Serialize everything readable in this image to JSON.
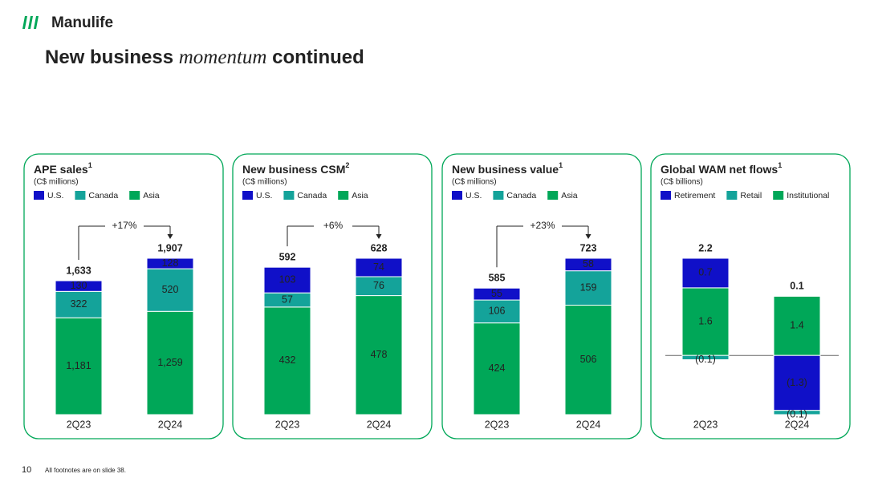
{
  "header": {
    "brand": "Manulife",
    "title_parts": [
      "New business",
      "momentum",
      "continued"
    ]
  },
  "footer": {
    "page": "10",
    "note": "All footnotes are on slide 38."
  },
  "chart_data": [
    {
      "type": "stacked_bar",
      "title": "APE sales",
      "title_note": "1",
      "subtitle": "(C$ millions)",
      "categories": [
        "2Q23",
        "2Q24"
      ],
      "series": [
        {
          "name": "U.S.",
          "color": "#1010c8",
          "values": [
            130,
            128
          ]
        },
        {
          "name": "Canada",
          "color": "#14a39a",
          "values": [
            322,
            520
          ]
        },
        {
          "name": "Asia",
          "color": "#00a758",
          "values": [
            1181,
            1259
          ],
          "value_labels": [
            "1,181",
            "1,259"
          ]
        }
      ],
      "totals": [
        1633,
        1907
      ],
      "total_labels": [
        "1,633",
        "1,907"
      ],
      "change_label": "+17%"
    },
    {
      "type": "stacked_bar",
      "title": "New business CSM",
      "title_note": "2",
      "subtitle": "(C$ millions)",
      "categories": [
        "2Q23",
        "2Q24"
      ],
      "series": [
        {
          "name": "U.S.",
          "color": "#1010c8",
          "values": [
            103,
            74
          ]
        },
        {
          "name": "Canada",
          "color": "#14a39a",
          "values": [
            57,
            76
          ]
        },
        {
          "name": "Asia",
          "color": "#00a758",
          "values": [
            432,
            478
          ]
        }
      ],
      "totals": [
        592,
        628
      ],
      "change_label": "+6%"
    },
    {
      "type": "stacked_bar",
      "title": "New business value",
      "title_note": "1",
      "subtitle": "(C$ millions)",
      "categories": [
        "2Q23",
        "2Q24"
      ],
      "series": [
        {
          "name": "U.S.",
          "color": "#1010c8",
          "values": [
            55,
            58
          ]
        },
        {
          "name": "Canada",
          "color": "#14a39a",
          "values": [
            106,
            159
          ]
        },
        {
          "name": "Asia",
          "color": "#00a758",
          "values": [
            424,
            506
          ]
        }
      ],
      "totals": [
        585,
        723
      ],
      "change_label": "+23%"
    },
    {
      "type": "stacked_bar",
      "title": "Global WAM net flows",
      "title_note": "1",
      "subtitle": "(C$ billions)",
      "categories": [
        "2Q23",
        "2Q24"
      ],
      "series": [
        {
          "name": "Retirement",
          "color": "#1010c8",
          "values": [
            0.7,
            -1.3
          ],
          "value_labels": [
            "0.7",
            "(1.3)"
          ]
        },
        {
          "name": "Retail",
          "color": "#14a39a",
          "values": [
            -0.1,
            -0.1
          ],
          "value_labels": [
            "(0.1)",
            "(0.1)"
          ]
        },
        {
          "name": "Institutional",
          "color": "#00a758",
          "values": [
            1.6,
            1.4
          ]
        }
      ],
      "totals": [
        2.2,
        0.1
      ]
    }
  ]
}
